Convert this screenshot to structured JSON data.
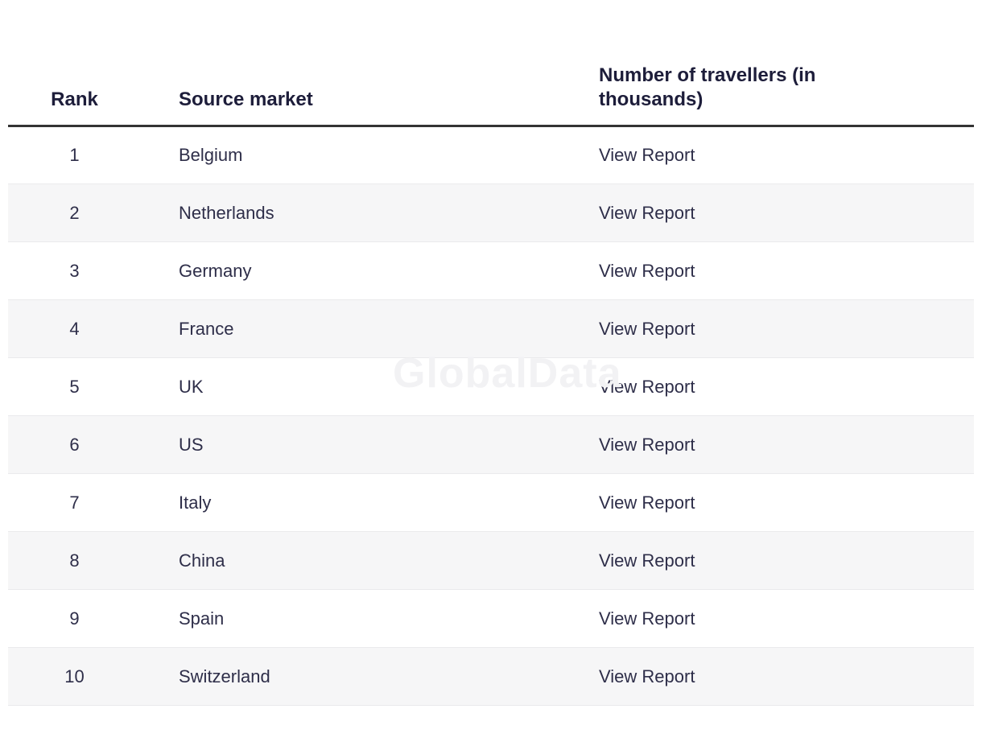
{
  "watermark": "GlobalData",
  "table": {
    "columns": [
      {
        "label": "Rank"
      },
      {
        "label": "Source market"
      },
      {
        "label": "Number of travellers (in thousands)"
      }
    ],
    "rows": [
      {
        "rank": "1",
        "source_market": "Belgium",
        "report_link": "View Report"
      },
      {
        "rank": "2",
        "source_market": "Netherlands",
        "report_link": "View Report"
      },
      {
        "rank": "3",
        "source_market": "Germany",
        "report_link": "View Report"
      },
      {
        "rank": "4",
        "source_market": "France",
        "report_link": "View Report"
      },
      {
        "rank": "5",
        "source_market": "UK",
        "report_link": "View Report"
      },
      {
        "rank": "6",
        "source_market": "US",
        "report_link": "View Report"
      },
      {
        "rank": "7",
        "source_market": "Italy",
        "report_link": "View Report"
      },
      {
        "rank": "8",
        "source_market": "China",
        "report_link": "View Report"
      },
      {
        "rank": "9",
        "source_market": "Spain",
        "report_link": "View Report"
      },
      {
        "rank": "10",
        "source_market": "Switzerland",
        "report_link": "View Report"
      }
    ]
  },
  "colors": {
    "header_text": "#1d1d3a",
    "body_text": "#2e2e49",
    "header_rule": "#333333",
    "row_alt_bg": "#f6f6f7",
    "row_border": "#eaeaec",
    "watermark": "#f2f2f4"
  }
}
